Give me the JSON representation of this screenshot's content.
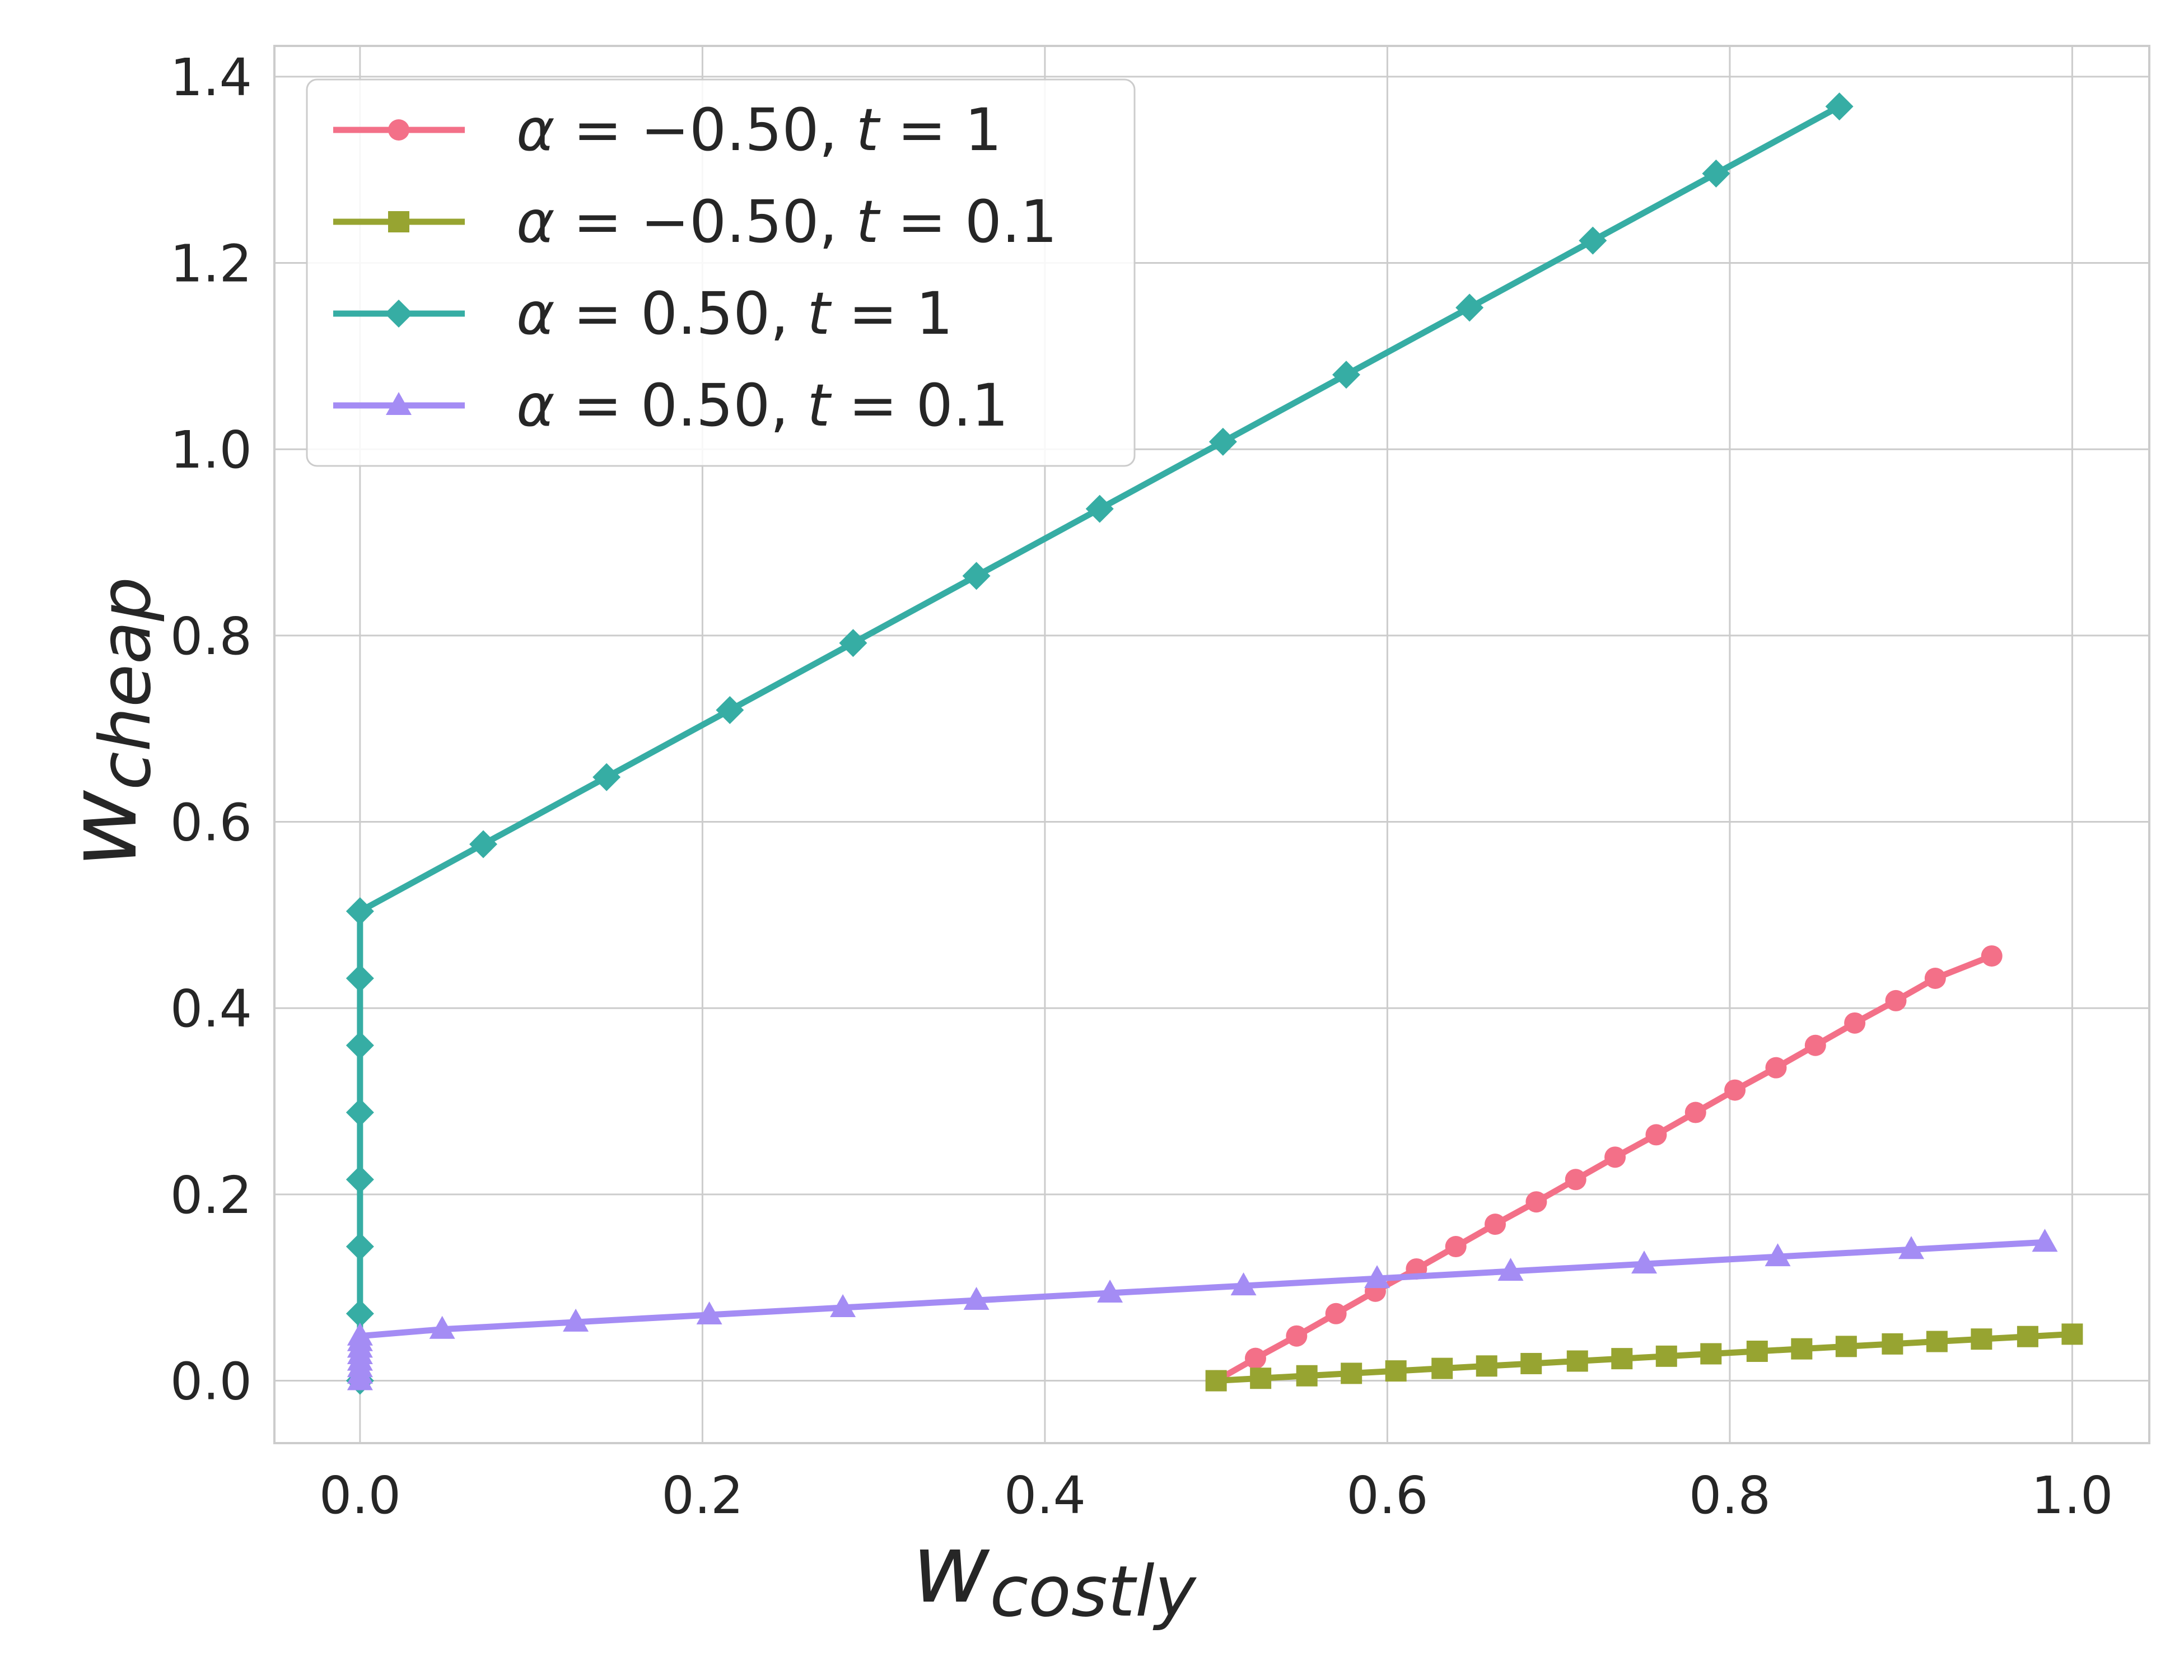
{
  "chart_data": {
    "type": "line",
    "title": "",
    "xlabel": "w",
    "xlabel_sub": "costly",
    "ylabel": "w",
    "ylabel_sub": "cheap",
    "xlim": [
      -0.05,
      1.045
    ],
    "ylim": [
      -0.067,
      1.433
    ],
    "grid": true,
    "legend_position": "top-left",
    "x_ticks": [
      0.0,
      0.2,
      0.4,
      0.6,
      0.8,
      1.0
    ],
    "x_tick_labels": [
      "0.0",
      "0.2",
      "0.4",
      "0.6",
      "0.8",
      "1.0"
    ],
    "y_ticks": [
      0.0,
      0.2,
      0.4,
      0.6,
      0.8,
      1.0,
      1.2,
      1.4
    ],
    "y_tick_labels": [
      "0.0",
      "0.2",
      "0.4",
      "0.6",
      "0.8",
      "1.0",
      "1.2",
      "1.4"
    ],
    "series": [
      {
        "name": "α = − 0.50, t = 1",
        "alpha_text": "−0.50",
        "t_text": "1",
        "color": "#f37088",
        "marker": "circle",
        "x": [
          0.5,
          0.523,
          0.547,
          0.57,
          0.593,
          0.617,
          0.64,
          0.663,
          0.687,
          0.71,
          0.733,
          0.757,
          0.78,
          0.803,
          0.827,
          0.85,
          0.873,
          0.897,
          0.92,
          0.953
        ],
        "y": [
          0.0,
          0.024,
          0.048,
          0.072,
          0.096,
          0.12,
          0.144,
          0.168,
          0.192,
          0.216,
          0.24,
          0.264,
          0.288,
          0.312,
          0.336,
          0.36,
          0.384,
          0.408,
          0.432,
          0.456
        ]
      },
      {
        "name": "α = − 0.50, t = 0.1",
        "alpha_text": "−0.50",
        "t_text": "0.1",
        "color": "#97a431",
        "marker": "square",
        "x": [
          0.5,
          0.526,
          0.553,
          0.579,
          0.605,
          0.632,
          0.658,
          0.684,
          0.711,
          0.737,
          0.763,
          0.789,
          0.816,
          0.842,
          0.868,
          0.895,
          0.921,
          0.947,
          0.974,
          1.0
        ],
        "y": [
          0.0,
          0.0026,
          0.0053,
          0.0079,
          0.0105,
          0.0132,
          0.0158,
          0.0184,
          0.0211,
          0.0237,
          0.0263,
          0.0289,
          0.0316,
          0.0342,
          0.0368,
          0.0395,
          0.0421,
          0.0447,
          0.0474,
          0.05
        ]
      },
      {
        "name": "α = 0.50, t = 1",
        "alpha_text": "0.50",
        "t_text": "1",
        "color": "#36ada4",
        "marker": "diamond",
        "x": [
          0.0,
          0.0,
          0.0,
          0.0,
          0.0,
          0.0,
          0.0,
          0.0,
          0.072,
          0.144,
          0.216,
          0.288,
          0.36,
          0.432,
          0.504,
          0.576,
          0.648,
          0.72,
          0.792,
          0.864
        ],
        "y": [
          0.0,
          0.072,
          0.144,
          0.216,
          0.288,
          0.36,
          0.432,
          0.504,
          0.576,
          0.648,
          0.72,
          0.792,
          0.864,
          0.936,
          1.008,
          1.08,
          1.152,
          1.224,
          1.296,
          1.368
        ]
      },
      {
        "name": "α = 0.50, t = 0.1",
        "alpha_text": "0.50",
        "t_text": "0.1",
        "color": "#a48cf4",
        "marker": "triangle",
        "x": [
          0.0,
          0.0,
          0.0,
          0.0,
          0.0,
          0.0,
          0.0,
          0.0,
          0.048,
          0.126,
          0.204,
          0.282,
          0.36,
          0.438,
          0.516,
          0.594,
          0.672,
          0.75,
          0.828,
          0.906,
          0.984
        ],
        "y": [
          0.0,
          0.007,
          0.014,
          0.021,
          0.028,
          0.035,
          0.042,
          0.048,
          0.0552,
          0.0629,
          0.0707,
          0.0785,
          0.0863,
          0.0941,
          0.1019,
          0.1097,
          0.1175,
          0.1253,
          0.1331,
          0.1409,
          0.1487
        ]
      }
    ]
  }
}
